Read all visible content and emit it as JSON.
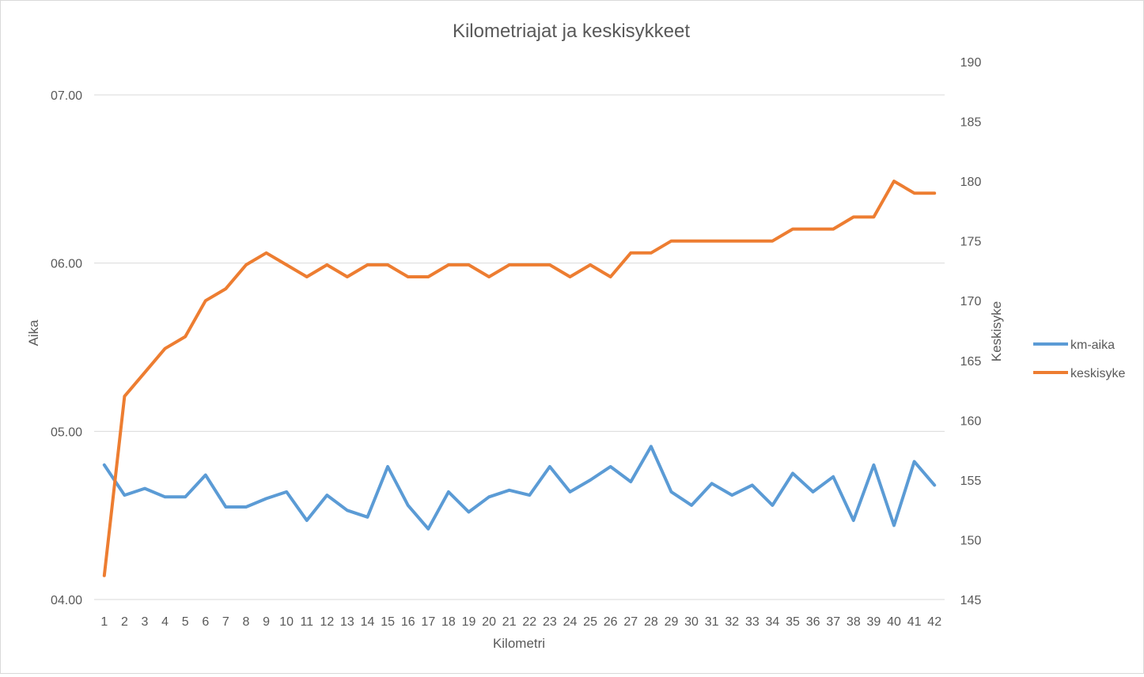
{
  "chart_data": {
    "type": "line",
    "title": "Kilometriajat ja keskisykkeet",
    "xlabel": "Kilometri",
    "ylabel_left": "Aika",
    "ylabel_right": "Keskisyke",
    "categories": [
      "1",
      "2",
      "3",
      "4",
      "5",
      "6",
      "7",
      "8",
      "9",
      "10",
      "11",
      "12",
      "13",
      "14",
      "15",
      "16",
      "17",
      "18",
      "19",
      "20",
      "21",
      "22",
      "23",
      "24",
      "25",
      "26",
      "27",
      "28",
      "29",
      "30",
      "31",
      "32",
      "33",
      "34",
      "35",
      "36",
      "37",
      "38",
      "39",
      "40",
      "41",
      "42"
    ],
    "y_left": {
      "ticks": [
        "04.00",
        "05.00",
        "06.00",
        "07.00"
      ],
      "tick_values": [
        4,
        5,
        6,
        7
      ],
      "range": [
        4,
        7
      ]
    },
    "y_right": {
      "ticks": [
        "145",
        "150",
        "155",
        "160",
        "165",
        "170",
        "175",
        "180",
        "185",
        "190"
      ],
      "tick_values": [
        145,
        150,
        155,
        160,
        165,
        170,
        175,
        180,
        185,
        190
      ],
      "range": [
        145,
        190
      ]
    },
    "grid": true,
    "legend_position": "right",
    "series": [
      {
        "name": "km-aika",
        "axis": "left",
        "color": "#5b9bd5",
        "values": [
          4.8,
          4.62,
          4.66,
          4.61,
          4.61,
          4.74,
          4.55,
          4.55,
          4.6,
          4.64,
          4.47,
          4.62,
          4.53,
          4.49,
          4.79,
          4.56,
          4.42,
          4.64,
          4.52,
          4.61,
          4.65,
          4.62,
          4.79,
          4.64,
          4.71,
          4.79,
          4.7,
          4.91,
          4.64,
          4.56,
          4.69,
          4.62,
          4.68,
          4.56,
          4.75,
          4.64,
          4.73,
          4.47,
          4.8,
          4.44,
          4.82,
          4.68
        ]
      },
      {
        "name": "keskisyke",
        "axis": "right",
        "color": "#ed7d31",
        "values": [
          147,
          162,
          164,
          166,
          167,
          170,
          171,
          173,
          174,
          173,
          172,
          173,
          172,
          173,
          173,
          172,
          172,
          173,
          173,
          172,
          173,
          173,
          173,
          172,
          173,
          172,
          174,
          174,
          175,
          175,
          175,
          175,
          175,
          175,
          176,
          176,
          176,
          177,
          177,
          180,
          179,
          179
        ]
      }
    ]
  }
}
